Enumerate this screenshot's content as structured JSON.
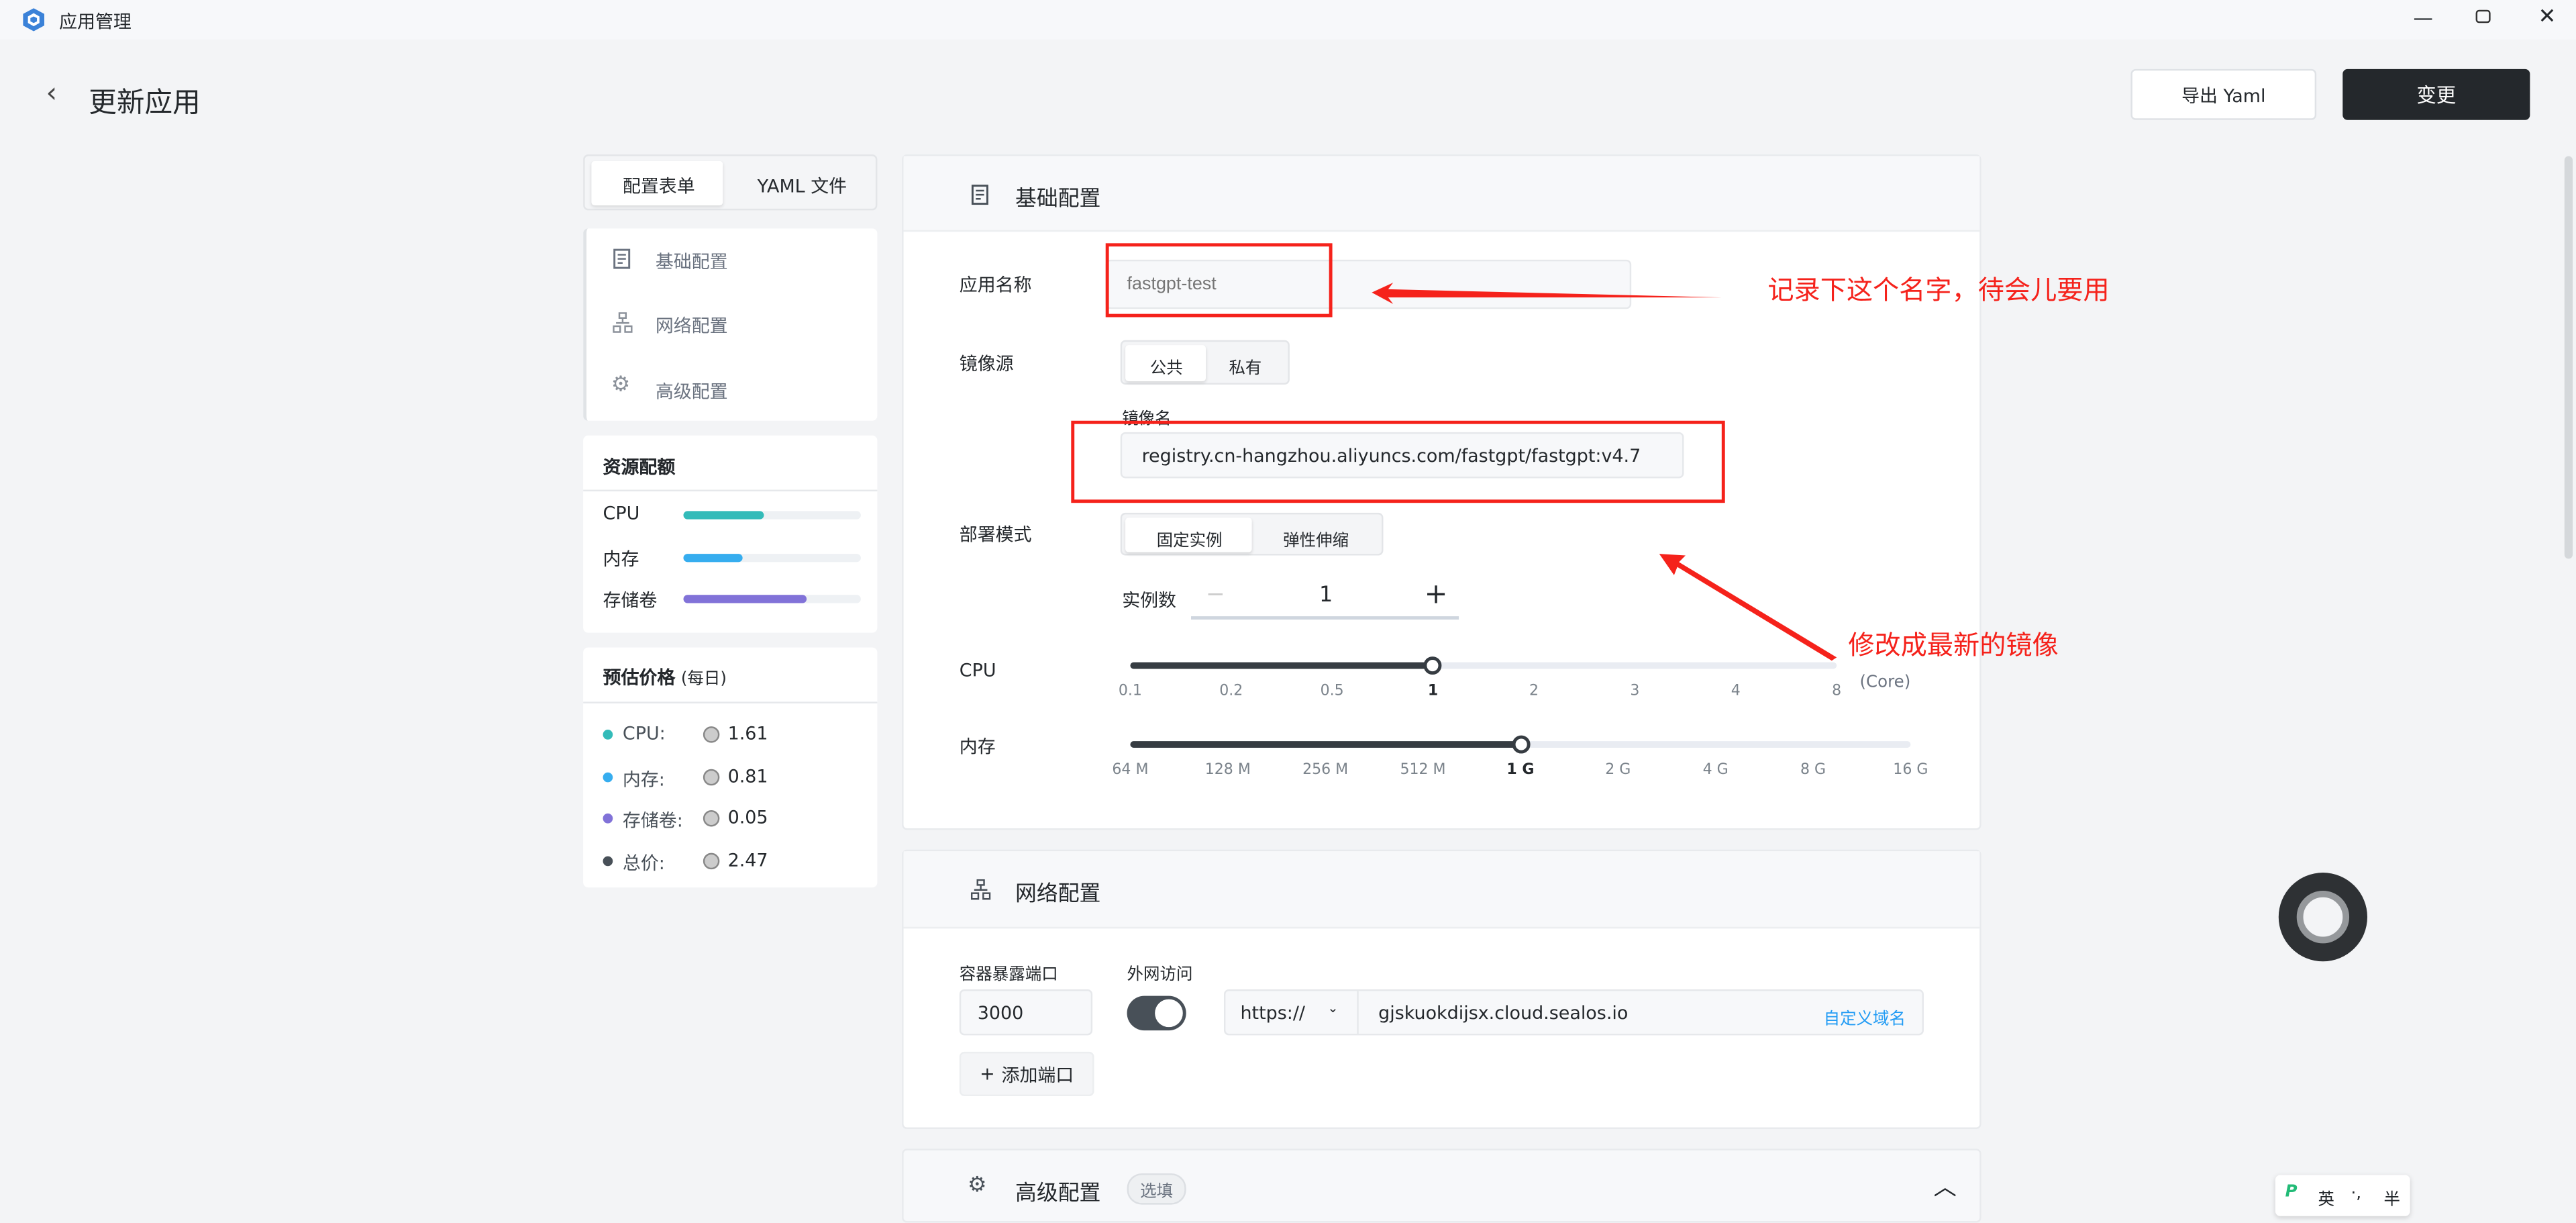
{
  "window": {
    "title": "应用管理",
    "controls": [
      "minimize",
      "restore",
      "close"
    ]
  },
  "header": {
    "title": "更新应用",
    "export_label": "导出 Yaml",
    "submit_label": "变更"
  },
  "left": {
    "tabs": [
      {
        "label": "配置表单",
        "active": true
      },
      {
        "label": "YAML 文件",
        "active": false
      }
    ],
    "nav": [
      {
        "label": "基础配置",
        "icon": "document-icon"
      },
      {
        "label": "网络配置",
        "icon": "network-icon"
      },
      {
        "label": "高级配置",
        "icon": "gear-icon"
      }
    ],
    "quota": {
      "title": "资源配额",
      "items": [
        {
          "label": "CPU",
          "fraction": 0.45,
          "color": "#33bbb9"
        },
        {
          "label": "内存",
          "fraction": 0.33,
          "color": "#36adef"
        },
        {
          "label": "存储卷",
          "fraction": 0.69,
          "color": "#8172d8"
        }
      ]
    },
    "price": {
      "title": "预估价格",
      "suffix": "(每日)",
      "items": [
        {
          "label": "CPU:",
          "value": "1.61",
          "color": "#33bbb9"
        },
        {
          "label": "内存:",
          "value": "0.81",
          "color": "#36adef"
        },
        {
          "label": "存储卷:",
          "value": "0.05",
          "color": "#8172d8"
        },
        {
          "label": "总价:",
          "value": "2.47",
          "color": "#485058"
        }
      ]
    }
  },
  "basic": {
    "title": "基础配置",
    "app_name_label": "应用名称",
    "app_name_placeholder": "fastgpt-test",
    "image_source_label": "镜像源",
    "image_source_options": [
      "公共",
      "私有"
    ],
    "image_source_selected": "公共",
    "image_name_label": "镜像名",
    "image_name_value": "registry.cn-hangzhou.aliyuncs.com/fastgpt/fastgpt:v4.7",
    "deploy_mode_label": "部署模式",
    "deploy_mode_options": [
      "固定实例",
      "弹性伸缩"
    ],
    "deploy_mode_selected": "固定实例",
    "replicas_label": "实例数",
    "replicas_value": "1",
    "minus": "−",
    "plus": "+",
    "cpu_label": "CPU",
    "cpu_ticks": [
      "0.1",
      "0.2",
      "0.5",
      "1",
      "2",
      "3",
      "4",
      "8"
    ],
    "cpu_selected": "1",
    "cpu_unit": "(Core)",
    "mem_label": "内存",
    "mem_ticks": [
      "64 M",
      "128 M",
      "256 M",
      "512 M",
      "1 G",
      "2 G",
      "4 G",
      "8 G",
      "16 G"
    ],
    "mem_selected": "1 G"
  },
  "network": {
    "title": "网络配置",
    "port_label": "容器暴露端口",
    "port_value": "3000",
    "public_label": "外网访问",
    "public_enabled": true,
    "protocol": "https://",
    "domain": "gjskuokdijsx.cloud.sealos.io",
    "custom_domain": "自定义域名",
    "add_port": "添加端口",
    "add_icon": "+"
  },
  "advanced": {
    "title": "高级配置",
    "badge": "选填"
  },
  "annotations": {
    "note1": "记录下这个名字，待会儿要用",
    "note2": "修改成最新的镜像",
    "color": "#f5221b"
  },
  "ime": {
    "mode": "英",
    "punct": "·,",
    "width": "半"
  },
  "colors": {
    "accent": "#24282c",
    "link": "#219bf4"
  }
}
